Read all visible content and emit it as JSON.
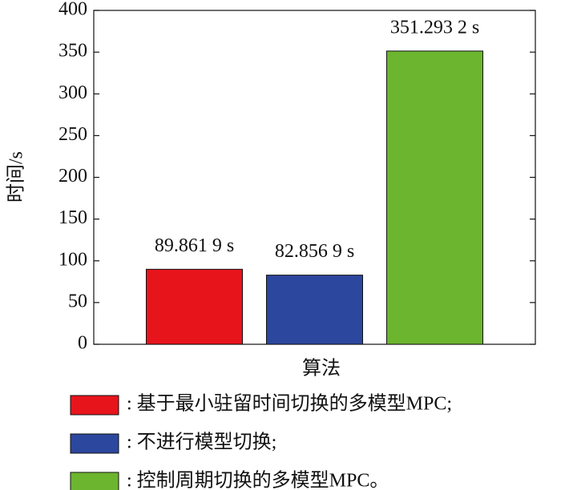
{
  "chart_data": {
    "type": "bar",
    "x_label": "算法",
    "y_label": "时间/s",
    "categories": [
      null
    ],
    "series": [
      {
        "name": ": 基于最小驻留时间切换的多模型MPC;",
        "color": "#e8141c",
        "values": [
          89.8619
        ],
        "value_labels": [
          "89.861 9 s"
        ]
      },
      {
        "name": ": 不进行模型切换;",
        "color": "#2c479e",
        "values": [
          82.8569
        ],
        "value_labels": [
          "82.856 9 s"
        ]
      },
      {
        "name": ": 控制周期切换的多模型MPC。",
        "color": "#6cb52e",
        "values": [
          351.2932
        ],
        "value_labels": [
          "351.293 2 s"
        ]
      }
    ],
    "ylim": [
      0,
      400
    ],
    "yticks": [
      0,
      50,
      100,
      150,
      200,
      250,
      300,
      350,
      400
    ],
    "grid": false
  }
}
